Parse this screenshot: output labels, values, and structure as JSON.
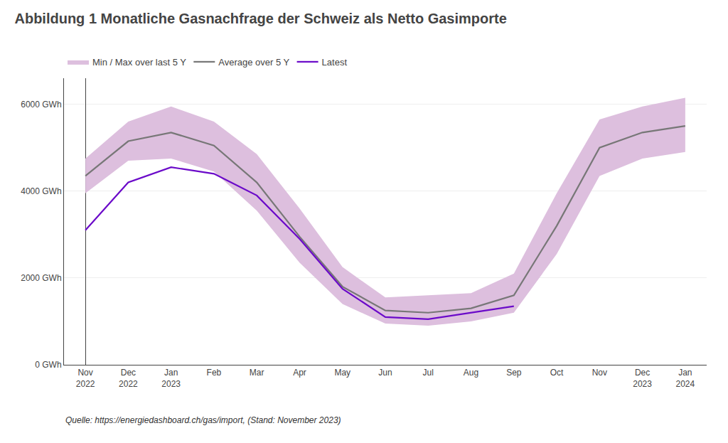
{
  "chart_data": {
    "type": "line",
    "title": "Abbildung 1 Monatliche Gasnachfrage der Schweiz als Netto Gasimporte",
    "categories": [
      "Nov\n2022",
      "Dec\n2022",
      "Jan\n2023",
      "Feb",
      "Mar",
      "Apr",
      "May",
      "Jun",
      "Jul",
      "Aug",
      "Sep",
      "Oct",
      "Nov",
      "Dec\n2023",
      "Jan\n2024"
    ],
    "series": [
      {
        "name": "Min / Max over last 5 Y",
        "type": "band",
        "color": "#ddbfde",
        "min": [
          3950,
          4700,
          4750,
          4450,
          3550,
          2350,
          1400,
          950,
          900,
          1000,
          1200,
          2550,
          4350,
          4750,
          4900
        ],
        "max": [
          4750,
          5600,
          5950,
          5600,
          4850,
          3600,
          2250,
          1550,
          1600,
          1650,
          2100,
          3950,
          5650,
          5950,
          6150
        ]
      },
      {
        "name": "Average over 5 Y",
        "type": "line",
        "color": "#777777",
        "values": [
          4350,
          5150,
          5350,
          5050,
          4200,
          2950,
          1800,
          1250,
          1200,
          1300,
          1600,
          3200,
          5000,
          5350,
          5500
        ]
      },
      {
        "name": "Latest",
        "type": "line",
        "color": "#6b0ac9",
        "values": [
          3100,
          4200,
          4550,
          4400,
          3900,
          2900,
          1750,
          1100,
          1050,
          1200,
          1350,
          null,
          null,
          null,
          null
        ]
      }
    ],
    "ylim": [
      0,
      6600
    ],
    "yticks": [
      {
        "value": 0,
        "label": "0 GWh"
      },
      {
        "value": 2000,
        "label": "2000 GWh"
      },
      {
        "value": 4000,
        "label": "4000 GWh"
      },
      {
        "value": 6000,
        "label": "6000 GWh"
      }
    ],
    "grid": true,
    "legend": "upper left",
    "annotations": [
      "Quelle: https://energiedashboard.ch/gas/import, (Stand: November 2023)"
    ]
  }
}
